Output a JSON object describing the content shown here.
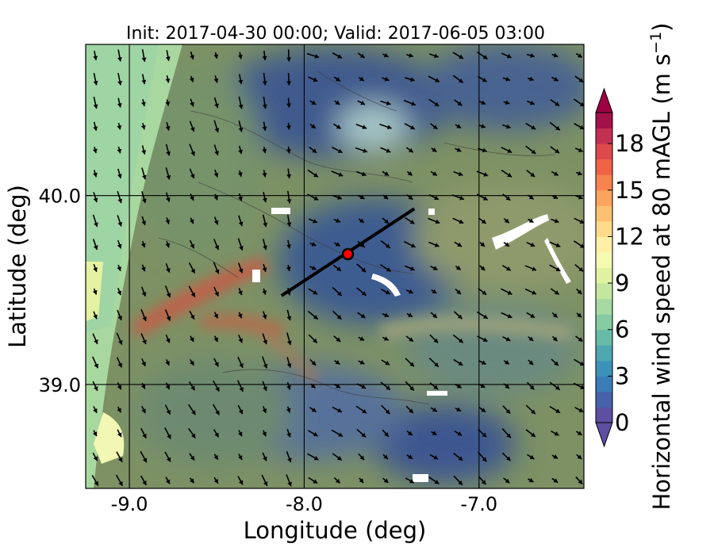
{
  "chart_data": {
    "type": "heatmap",
    "title": "Init: 2017-04-30 00:00; Valid: 2017-06-05 03:00",
    "xlabel": "Longitude (deg)",
    "ylabel": "Latitude (deg)",
    "xlim": [
      -9.25,
      -6.4
    ],
    "ylim": [
      38.45,
      40.8
    ],
    "xticks": [
      -9.0,
      -8.0,
      -7.0
    ],
    "xtick_labels": [
      "-9.0",
      "-8.0",
      "-7.0"
    ],
    "yticks": [
      39.0,
      40.0
    ],
    "ytick_labels": [
      "39.0",
      "40.0"
    ],
    "grid": true,
    "colorbar": {
      "label": "Horizontal wind speed at 80 mAGL (m s",
      "label_exponent": "−1",
      "label_close": ")",
      "min": 0,
      "max": 20,
      "ticks": [
        0,
        3,
        6,
        9,
        12,
        15,
        18
      ],
      "tick_labels": [
        "0",
        "3",
        "6",
        "9",
        "12",
        "15",
        "18"
      ],
      "extend": "both",
      "colors": [
        "#5e4fa2",
        "#4761ad",
        "#3a7db8",
        "#3b92b9",
        "#4ea8b0",
        "#66bba6",
        "#86cba4",
        "#a6d9a3",
        "#c4e69f",
        "#e0f2a0",
        "#f4fab0",
        "#fef1a6",
        "#fedb8a",
        "#fdc171",
        "#fca35e",
        "#f7834f",
        "#ee6445",
        "#dc4a4c",
        "#c33152",
        "#a1124a"
      ],
      "under_color": "#5e4fa2",
      "over_color": "#9e0142"
    },
    "transect": {
      "start": [
        -8.13,
        39.47
      ],
      "end": [
        -7.37,
        39.93
      ]
    },
    "marker": {
      "lon": -7.75,
      "lat": 39.69,
      "color": "#ff0000"
    }
  }
}
